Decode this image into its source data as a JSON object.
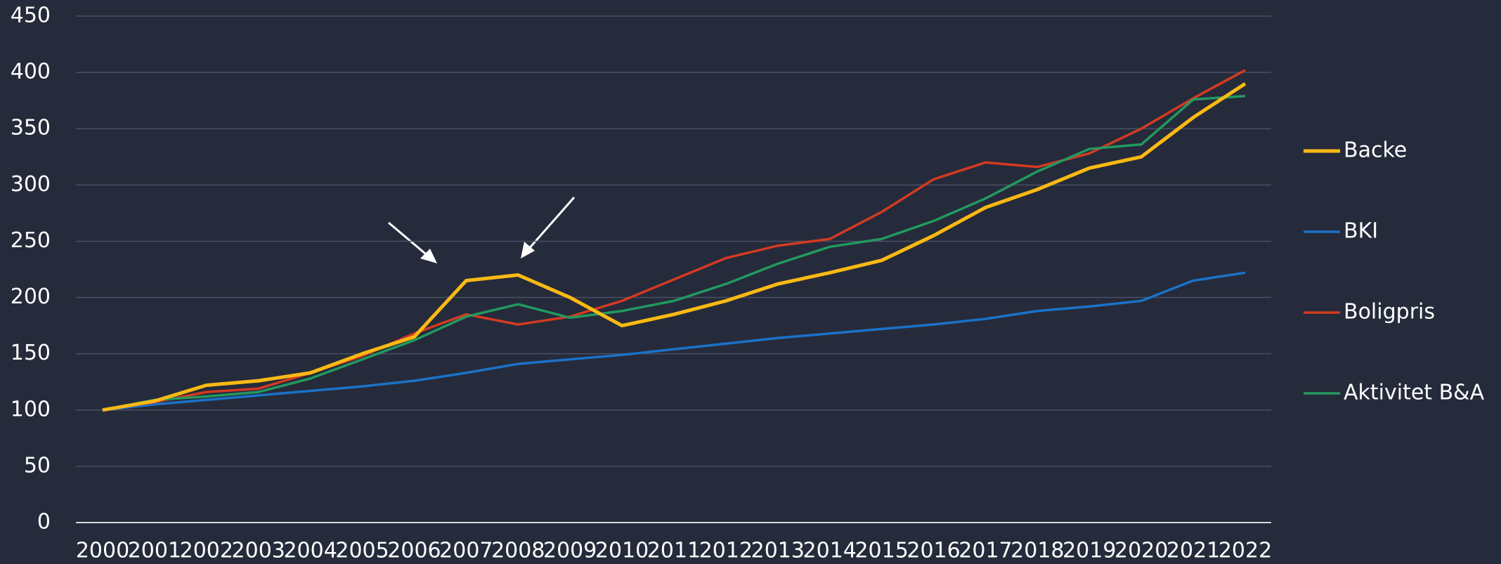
{
  "chart_data": {
    "type": "line",
    "x": [
      2000,
      2001,
      2002,
      2003,
      2004,
      2005,
      2006,
      2007,
      2008,
      2009,
      2010,
      2011,
      2012,
      2013,
      2014,
      2015,
      2016,
      2017,
      2018,
      2019,
      2020,
      2021,
      2022
    ],
    "series": [
      {
        "name": "Backe",
        "color": "#fbb914",
        "values": [
          100,
          108,
          122,
          126,
          133,
          150,
          165,
          215,
          220,
          200,
          175,
          185,
          197,
          212,
          222,
          233,
          255,
          280,
          296,
          315,
          325,
          360,
          390
        ]
      },
      {
        "name": "BKI",
        "color": "#1a72c8",
        "values": [
          100,
          105,
          109,
          113,
          117,
          121,
          126,
          133,
          141,
          145,
          149,
          154,
          159,
          164,
          168,
          172,
          176,
          181,
          188,
          192,
          197,
          215,
          222
        ]
      },
      {
        "name": "Boligpris",
        "color": "#d43a22",
        "values": [
          100,
          107,
          116,
          119,
          133,
          148,
          168,
          185,
          176,
          183,
          197,
          216,
          235,
          246,
          252,
          276,
          305,
          320,
          316,
          328,
          350,
          377,
          402
        ]
      },
      {
        "name": "Aktivitet B&A",
        "color": "#23995f",
        "values": [
          100,
          109,
          112,
          116,
          128,
          145,
          162,
          183,
          194,
          182,
          188,
          197,
          212,
          230,
          245,
          252,
          268,
          288,
          312,
          332,
          336,
          376,
          379
        ]
      }
    ],
    "ylim": [
      0,
      450
    ],
    "yticks": [
      0,
      50,
      100,
      150,
      200,
      250,
      300,
      350,
      400,
      450
    ],
    "grid": true,
    "legend": "right"
  }
}
